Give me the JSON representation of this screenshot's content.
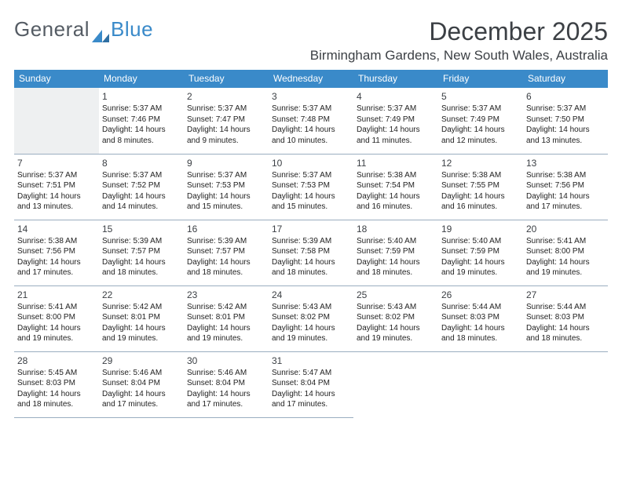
{
  "logo": {
    "text1": "General",
    "text2": "Blue",
    "icon_color": "#3a8ac9"
  },
  "title": "December 2025",
  "location": "Birmingham Gardens, New South Wales, Australia",
  "colors": {
    "header_bg": "#3a8ac9",
    "header_text": "#ffffff",
    "border": "#9aaec0",
    "lead_bg": "#eef0f1",
    "text": "#222222",
    "title_text": "#3c4045"
  },
  "dayHeaders": [
    "Sunday",
    "Monday",
    "Tuesday",
    "Wednesday",
    "Thursday",
    "Friday",
    "Saturday"
  ],
  "weeks": [
    [
      null,
      {
        "n": "1",
        "sunrise": "5:37 AM",
        "sunset": "7:46 PM",
        "daylight": "14 hours and 8 minutes."
      },
      {
        "n": "2",
        "sunrise": "5:37 AM",
        "sunset": "7:47 PM",
        "daylight": "14 hours and 9 minutes."
      },
      {
        "n": "3",
        "sunrise": "5:37 AM",
        "sunset": "7:48 PM",
        "daylight": "14 hours and 10 minutes."
      },
      {
        "n": "4",
        "sunrise": "5:37 AM",
        "sunset": "7:49 PM",
        "daylight": "14 hours and 11 minutes."
      },
      {
        "n": "5",
        "sunrise": "5:37 AM",
        "sunset": "7:49 PM",
        "daylight": "14 hours and 12 minutes."
      },
      {
        "n": "6",
        "sunrise": "5:37 AM",
        "sunset": "7:50 PM",
        "daylight": "14 hours and 13 minutes."
      }
    ],
    [
      {
        "n": "7",
        "sunrise": "5:37 AM",
        "sunset": "7:51 PM",
        "daylight": "14 hours and 13 minutes."
      },
      {
        "n": "8",
        "sunrise": "5:37 AM",
        "sunset": "7:52 PM",
        "daylight": "14 hours and 14 minutes."
      },
      {
        "n": "9",
        "sunrise": "5:37 AM",
        "sunset": "7:53 PM",
        "daylight": "14 hours and 15 minutes."
      },
      {
        "n": "10",
        "sunrise": "5:37 AM",
        "sunset": "7:53 PM",
        "daylight": "14 hours and 15 minutes."
      },
      {
        "n": "11",
        "sunrise": "5:38 AM",
        "sunset": "7:54 PM",
        "daylight": "14 hours and 16 minutes."
      },
      {
        "n": "12",
        "sunrise": "5:38 AM",
        "sunset": "7:55 PM",
        "daylight": "14 hours and 16 minutes."
      },
      {
        "n": "13",
        "sunrise": "5:38 AM",
        "sunset": "7:56 PM",
        "daylight": "14 hours and 17 minutes."
      }
    ],
    [
      {
        "n": "14",
        "sunrise": "5:38 AM",
        "sunset": "7:56 PM",
        "daylight": "14 hours and 17 minutes."
      },
      {
        "n": "15",
        "sunrise": "5:39 AM",
        "sunset": "7:57 PM",
        "daylight": "14 hours and 18 minutes."
      },
      {
        "n": "16",
        "sunrise": "5:39 AM",
        "sunset": "7:57 PM",
        "daylight": "14 hours and 18 minutes."
      },
      {
        "n": "17",
        "sunrise": "5:39 AM",
        "sunset": "7:58 PM",
        "daylight": "14 hours and 18 minutes."
      },
      {
        "n": "18",
        "sunrise": "5:40 AM",
        "sunset": "7:59 PM",
        "daylight": "14 hours and 18 minutes."
      },
      {
        "n": "19",
        "sunrise": "5:40 AM",
        "sunset": "7:59 PM",
        "daylight": "14 hours and 19 minutes."
      },
      {
        "n": "20",
        "sunrise": "5:41 AM",
        "sunset": "8:00 PM",
        "daylight": "14 hours and 19 minutes."
      }
    ],
    [
      {
        "n": "21",
        "sunrise": "5:41 AM",
        "sunset": "8:00 PM",
        "daylight": "14 hours and 19 minutes."
      },
      {
        "n": "22",
        "sunrise": "5:42 AM",
        "sunset": "8:01 PM",
        "daylight": "14 hours and 19 minutes."
      },
      {
        "n": "23",
        "sunrise": "5:42 AM",
        "sunset": "8:01 PM",
        "daylight": "14 hours and 19 minutes."
      },
      {
        "n": "24",
        "sunrise": "5:43 AM",
        "sunset": "8:02 PM",
        "daylight": "14 hours and 19 minutes."
      },
      {
        "n": "25",
        "sunrise": "5:43 AM",
        "sunset": "8:02 PM",
        "daylight": "14 hours and 19 minutes."
      },
      {
        "n": "26",
        "sunrise": "5:44 AM",
        "sunset": "8:03 PM",
        "daylight": "14 hours and 18 minutes."
      },
      {
        "n": "27",
        "sunrise": "5:44 AM",
        "sunset": "8:03 PM",
        "daylight": "14 hours and 18 minutes."
      }
    ],
    [
      {
        "n": "28",
        "sunrise": "5:45 AM",
        "sunset": "8:03 PM",
        "daylight": "14 hours and 18 minutes."
      },
      {
        "n": "29",
        "sunrise": "5:46 AM",
        "sunset": "8:04 PM",
        "daylight": "14 hours and 17 minutes."
      },
      {
        "n": "30",
        "sunrise": "5:46 AM",
        "sunset": "8:04 PM",
        "daylight": "14 hours and 17 minutes."
      },
      {
        "n": "31",
        "sunrise": "5:47 AM",
        "sunset": "8:04 PM",
        "daylight": "14 hours and 17 minutes."
      },
      null,
      null,
      null
    ]
  ],
  "labels": {
    "sunrise": "Sunrise:",
    "sunset": "Sunset:",
    "daylight": "Daylight:"
  }
}
